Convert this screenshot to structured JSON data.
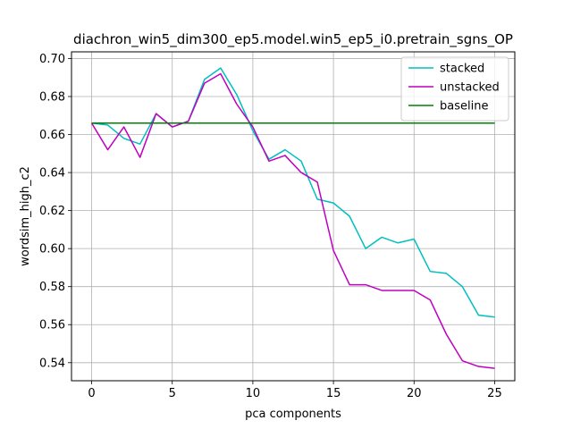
{
  "chart_data": {
    "type": "line",
    "title": "diachron_win5_dim300_ep5.model.win5_ep5_i0.pretrain_sgns_OP",
    "xlabel": "pca components",
    "ylabel": "wordsim_high_c2",
    "x": [
      0,
      1,
      2,
      3,
      4,
      5,
      6,
      7,
      8,
      9,
      10,
      11,
      12,
      13,
      14,
      15,
      16,
      17,
      18,
      19,
      20,
      21,
      22,
      23,
      24,
      25
    ],
    "xlim": [
      -1.25,
      26.25
    ],
    "ylim": [
      0.5305,
      0.7035
    ],
    "xticks": [
      0,
      5,
      10,
      15,
      20,
      25
    ],
    "yticks": [
      0.54,
      0.56,
      0.58,
      0.6,
      0.62,
      0.64,
      0.66,
      0.68,
      0.7
    ],
    "ytick_labels": [
      "0.54",
      "0.56",
      "0.58",
      "0.60",
      "0.62",
      "0.64",
      "0.66",
      "0.68",
      "0.70"
    ],
    "grid": true,
    "legend_position": "top-right",
    "series": [
      {
        "name": "stacked",
        "color": "#00bfbf",
        "values": [
          0.666,
          0.665,
          0.658,
          0.655,
          0.671,
          0.664,
          0.667,
          0.689,
          0.695,
          0.681,
          0.662,
          0.647,
          0.652,
          0.646,
          0.626,
          0.624,
          0.617,
          0.6,
          0.606,
          0.603,
          0.605,
          0.588,
          0.587,
          0.58,
          0.565,
          0.564
        ]
      },
      {
        "name": "unstacked",
        "color": "#bf00bf",
        "values": [
          0.666,
          0.652,
          0.664,
          0.648,
          0.671,
          0.664,
          0.667,
          0.687,
          0.692,
          0.676,
          0.664,
          0.646,
          0.649,
          0.64,
          0.635,
          0.599,
          0.581,
          0.581,
          0.578,
          0.578,
          0.578,
          0.573,
          0.555,
          0.541,
          0.538,
          0.537
        ]
      },
      {
        "name": "baseline",
        "color": "#008000",
        "values": [
          0.666,
          0.666,
          0.666,
          0.666,
          0.666,
          0.666,
          0.666,
          0.666,
          0.666,
          0.666,
          0.666,
          0.666,
          0.666,
          0.666,
          0.666,
          0.666,
          0.666,
          0.666,
          0.666,
          0.666,
          0.666,
          0.666,
          0.666,
          0.666,
          0.666,
          0.666
        ]
      }
    ]
  }
}
